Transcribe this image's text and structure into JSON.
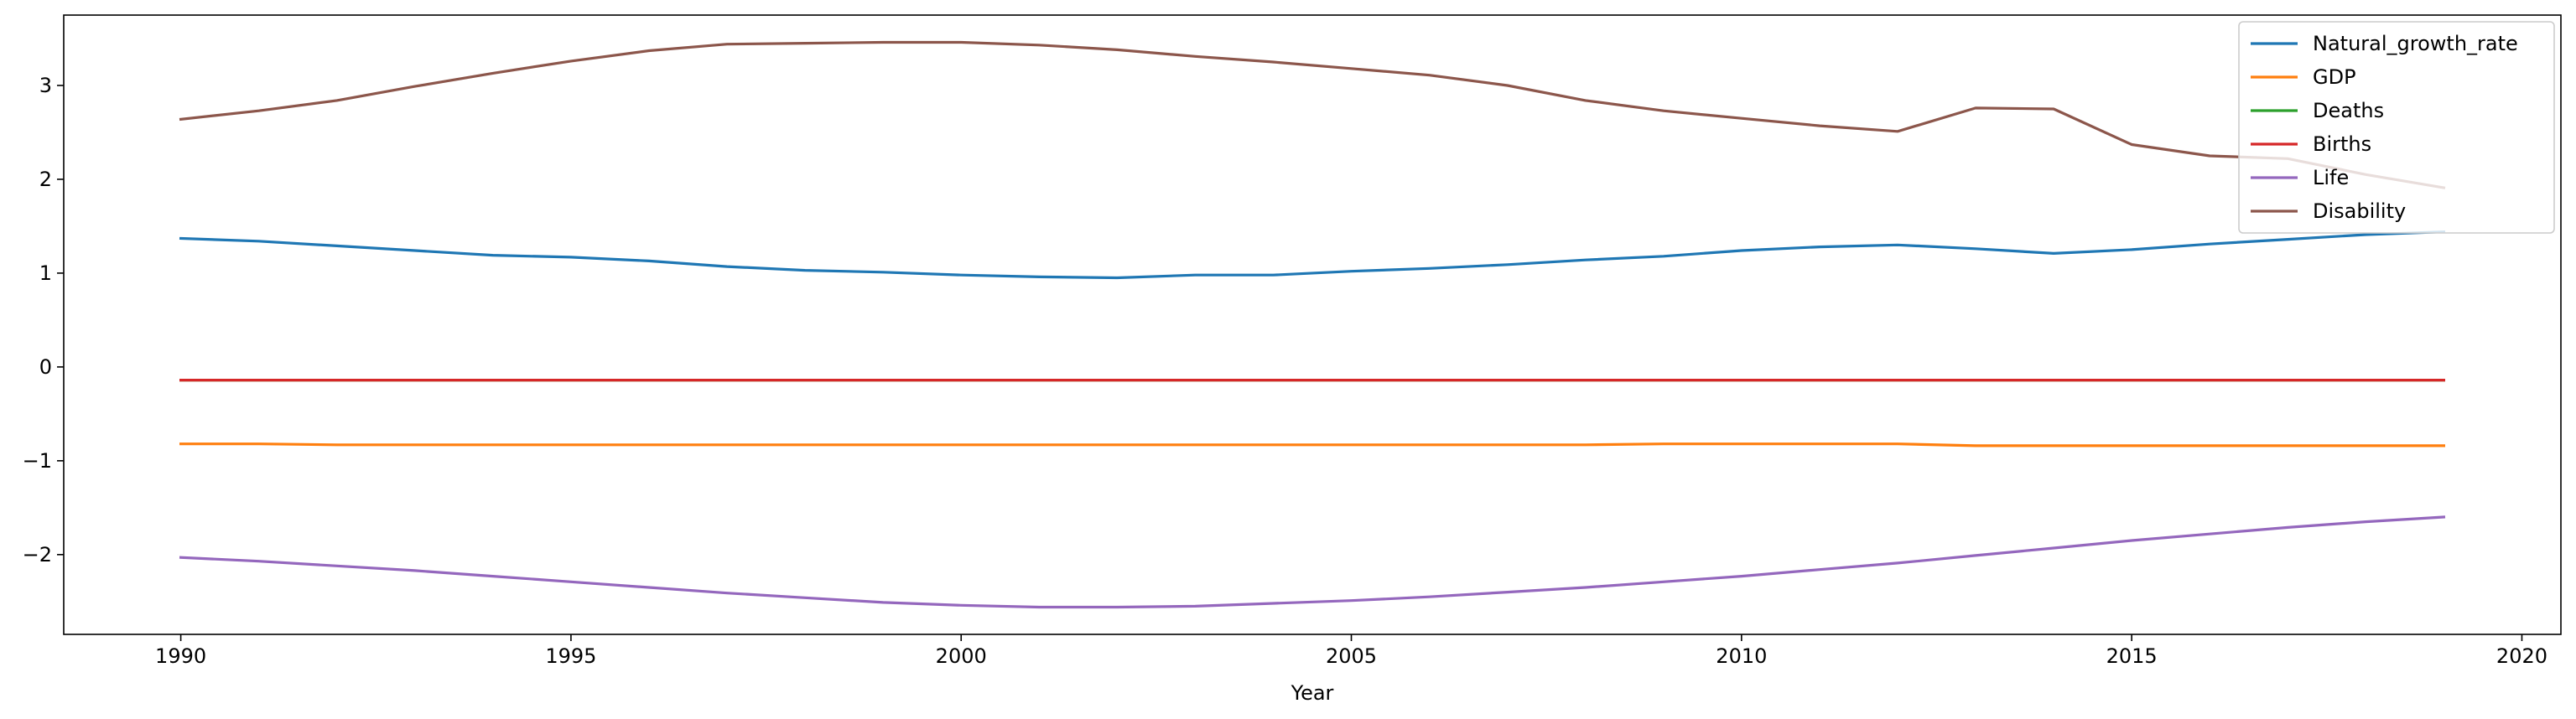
{
  "chart_data": {
    "type": "line",
    "title": "",
    "xlabel": "Year",
    "ylabel": "",
    "xlim": [
      1988.5,
      2020.5
    ],
    "ylim": [
      -2.85,
      3.75
    ],
    "xticks": [
      1990,
      1995,
      2000,
      2005,
      2010,
      2015,
      2020
    ],
    "yticks": [
      -2,
      -1,
      0,
      1,
      2,
      3
    ],
    "grid": false,
    "legend_position": "top-right",
    "x": [
      1990,
      1991,
      1992,
      1993,
      1994,
      1995,
      1996,
      1997,
      1998,
      1999,
      2000,
      2001,
      2002,
      2003,
      2004,
      2005,
      2006,
      2007,
      2008,
      2009,
      2010,
      2011,
      2012,
      2013,
      2014,
      2015,
      2016,
      2017,
      2018,
      2019
    ],
    "series": [
      {
        "name": "Natural_growth_rate",
        "color": "#1f77b4",
        "values": [
          1.37,
          1.34,
          1.29,
          1.24,
          1.19,
          1.17,
          1.13,
          1.07,
          1.03,
          1.01,
          0.98,
          0.96,
          0.95,
          0.98,
          0.98,
          1.02,
          1.05,
          1.09,
          1.14,
          1.18,
          1.24,
          1.28,
          1.3,
          1.26,
          1.21,
          1.25,
          1.31,
          1.36,
          1.41,
          1.44
        ]
      },
      {
        "name": "GDP",
        "color": "#ff7f0e",
        "values": [
          -0.82,
          -0.82,
          -0.83,
          -0.83,
          -0.83,
          -0.83,
          -0.83,
          -0.83,
          -0.83,
          -0.83,
          -0.83,
          -0.83,
          -0.83,
          -0.83,
          -0.83,
          -0.83,
          -0.83,
          -0.83,
          -0.83,
          -0.82,
          -0.82,
          -0.82,
          -0.82,
          -0.84,
          -0.84,
          -0.84,
          -0.84,
          -0.84,
          -0.84,
          -0.84
        ]
      },
      {
        "name": "Deaths",
        "color": "#2ca02c",
        "values": [
          -0.14,
          -0.14,
          -0.14,
          -0.14,
          -0.14,
          -0.14,
          -0.14,
          -0.14,
          -0.14,
          -0.14,
          -0.14,
          -0.14,
          -0.14,
          -0.14,
          -0.14,
          -0.14,
          -0.14,
          -0.14,
          -0.14,
          -0.14,
          -0.14,
          -0.14,
          -0.14,
          -0.14,
          -0.14,
          -0.14,
          -0.14,
          -0.14,
          -0.14,
          -0.14
        ]
      },
      {
        "name": "Births",
        "color": "#d62728",
        "values": [
          -0.14,
          -0.14,
          -0.14,
          -0.14,
          -0.14,
          -0.14,
          -0.14,
          -0.14,
          -0.14,
          -0.14,
          -0.14,
          -0.14,
          -0.14,
          -0.14,
          -0.14,
          -0.14,
          -0.14,
          -0.14,
          -0.14,
          -0.14,
          -0.14,
          -0.14,
          -0.14,
          -0.14,
          -0.14,
          -0.14,
          -0.14,
          -0.14,
          -0.14,
          -0.14
        ]
      },
      {
        "name": "Life",
        "color": "#9467bd",
        "values": [
          -2.03,
          -2.07,
          -2.12,
          -2.17,
          -2.23,
          -2.29,
          -2.35,
          -2.41,
          -2.46,
          -2.51,
          -2.54,
          -2.56,
          -2.56,
          -2.55,
          -2.52,
          -2.49,
          -2.45,
          -2.4,
          -2.35,
          -2.29,
          -2.23,
          -2.16,
          -2.09,
          -2.01,
          -1.93,
          -1.85,
          -1.78,
          -1.71,
          -1.65,
          -1.6
        ]
      },
      {
        "name": "Disability",
        "color": "#8c564b",
        "values": [
          2.64,
          2.73,
          2.84,
          2.99,
          3.13,
          3.26,
          3.37,
          3.44,
          3.45,
          3.46,
          3.46,
          3.43,
          3.38,
          3.31,
          3.25,
          3.18,
          3.11,
          3.0,
          2.84,
          2.73,
          2.65,
          2.57,
          2.51,
          2.76,
          2.75,
          2.37,
          2.25,
          2.22,
          2.05,
          1.91
        ]
      }
    ]
  }
}
